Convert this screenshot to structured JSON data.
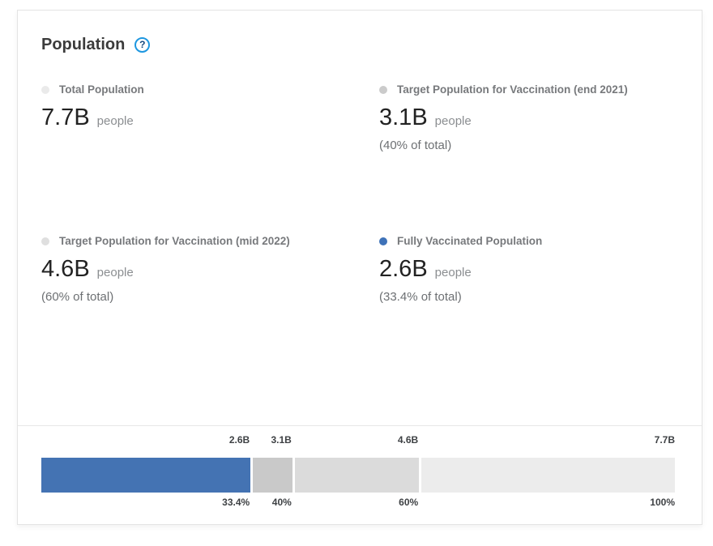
{
  "card": {
    "title": "Population",
    "help": {
      "glyph": "?"
    },
    "stats": [
      {
        "label": "Total Population",
        "value": "7.7B",
        "unit": "people",
        "note": "",
        "bullet_color": "#eaeaea"
      },
      {
        "label": "Target Population for Vaccination (end 2021)",
        "value": "3.1B",
        "unit": "people",
        "note": "(40% of total)",
        "bullet_color": "#cbcbcb"
      },
      {
        "label": "Target Population for Vaccination (mid 2022)",
        "value": "4.6B",
        "unit": "people",
        "note": "(60% of total)",
        "bullet_color": "#dfdfdf"
      },
      {
        "label": "Fully Vaccinated Population",
        "value": "2.6B",
        "unit": "people",
        "note": "(33.4% of total)",
        "bullet_color": "#3e72b8"
      }
    ]
  },
  "chart_data": {
    "type": "bar",
    "orientation": "horizontal-stacked-progress",
    "xlim_percent": [
      0,
      100
    ],
    "unit": "B people",
    "segments": [
      {
        "name": "Fully Vaccinated Population",
        "value": 2.6,
        "value_label": "2.6B",
        "percent": 33.4,
        "percent_label": "33.4%",
        "color": "#4473b3"
      },
      {
        "name": "Target Population for Vaccination (end 2021)",
        "value": 3.1,
        "value_label": "3.1B",
        "percent": 40,
        "percent_label": "40%",
        "color": "#c9c9c9"
      },
      {
        "name": "Target Population for Vaccination (mid 2022)",
        "value": 4.6,
        "value_label": "4.6B",
        "percent": 60,
        "percent_label": "60%",
        "color": "#dbdbdb"
      },
      {
        "name": "Total Population",
        "value": 7.7,
        "value_label": "7.7B",
        "percent": 100,
        "percent_label": "100%",
        "color": "#ececec"
      }
    ]
  }
}
